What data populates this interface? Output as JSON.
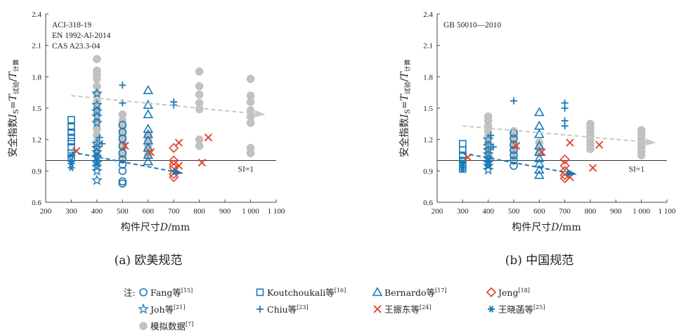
{
  "legend_prefix": "注:",
  "colors": {
    "blue": "#1a7ab5",
    "red": "#e0432c",
    "grey": "#c2c2c2",
    "axis": "#444444"
  },
  "legend": [
    {
      "key": "fang",
      "marker": "circle",
      "color": "#1a7ab5",
      "label": "Fang等",
      "ref": "[15]"
    },
    {
      "key": "koutchoukali",
      "marker": "square",
      "color": "#1a7ab5",
      "label": "Koutchoukali等",
      "ref": "[16]"
    },
    {
      "key": "bernardo",
      "marker": "triangle",
      "color": "#1a7ab5",
      "label": "Bernardo等",
      "ref": "[17]"
    },
    {
      "key": "jeng",
      "marker": "diamond",
      "color": "#e0432c",
      "label": "Jeng",
      "ref": "[18]"
    },
    {
      "key": "joh",
      "marker": "star",
      "color": "#1a7ab5",
      "label": "Joh等",
      "ref": "[21]"
    },
    {
      "key": "chiu",
      "marker": "plus",
      "color": "#1a7ab5",
      "label": "Chiu等",
      "ref": "[23]"
    },
    {
      "key": "wang_zd",
      "marker": "cross",
      "color": "#e0432c",
      "label": "王振东等",
      "ref": "[24]"
    },
    {
      "key": "wang_xh",
      "marker": "asterisk",
      "color": "#1a7ab5",
      "label": "王晓菡等",
      "ref": "[25]"
    },
    {
      "key": "sim",
      "marker": "dot",
      "color": "#c2c2c2",
      "label": "模拟数据",
      "ref": "[7]"
    }
  ],
  "chart_data": [
    {
      "type": "scatter",
      "caption": "(a) 欧美规范",
      "notes": [
        "ACI-318-19",
        "EN 1992-Al-2014",
        "CAS A23.3-04"
      ],
      "xlabel": "构件尺寸D/mm",
      "ylabel": "安全指数I_S=T_试验/T_计算",
      "xlim": [
        200,
        1100
      ],
      "ylim": [
        0.6,
        2.4
      ],
      "xticks": [
        200,
        300,
        400,
        500,
        600,
        700,
        800,
        900,
        1000,
        1100
      ],
      "xtick_labels": [
        "200",
        "300",
        "400",
        "500",
        "600",
        "700",
        "800",
        "900",
        "1 000",
        "1 100"
      ],
      "yticks": [
        0.6,
        0.9,
        1.2,
        1.5,
        1.8,
        2.1,
        2.4
      ],
      "ytick_labels": [
        "0.6",
        "0.9",
        "1.2",
        "1.5",
        "1.8",
        "2.1",
        "2.4"
      ],
      "reference_line": {
        "y": 1.0,
        "label": "SI=1"
      },
      "trend_lines": [
        {
          "color": "blue",
          "x": [
            300,
            730
          ],
          "y": [
            1.08,
            0.88
          ]
        },
        {
          "color": "grey",
          "x": [
            300,
            1050
          ],
          "y": [
            1.62,
            1.44
          ]
        }
      ],
      "series": [
        {
          "key": "sim",
          "points": [
            [
              400,
              1.97
            ],
            [
              400,
              1.86
            ],
            [
              400,
              1.82
            ],
            [
              400,
              1.78
            ],
            [
              400,
              1.71
            ],
            [
              400,
              1.64
            ],
            [
              400,
              1.56
            ],
            [
              400,
              1.5
            ],
            [
              400,
              1.45
            ],
            [
              400,
              1.37
            ],
            [
              400,
              1.3
            ],
            [
              400,
              1.24
            ],
            [
              400,
              1.18
            ],
            [
              400,
              1.13
            ],
            [
              400,
              1.08
            ],
            [
              500,
              1.44
            ],
            [
              500,
              1.38
            ],
            [
              500,
              1.33
            ],
            [
              500,
              1.28
            ],
            [
              500,
              1.23
            ],
            [
              500,
              1.18
            ],
            [
              500,
              1.13
            ],
            [
              500,
              1.08
            ],
            [
              500,
              1.04
            ],
            [
              600,
              1.24
            ],
            [
              600,
              1.19
            ],
            [
              600,
              1.14
            ],
            [
              600,
              1.1
            ],
            [
              600,
              1.05
            ],
            [
              800,
              1.85
            ],
            [
              800,
              1.71
            ],
            [
              800,
              1.63
            ],
            [
              800,
              1.55
            ],
            [
              800,
              1.49
            ],
            [
              800,
              1.2
            ],
            [
              800,
              1.14
            ],
            [
              1000,
              1.78
            ],
            [
              1000,
              1.62
            ],
            [
              1000,
              1.56
            ],
            [
              1000,
              1.48
            ],
            [
              1000,
              1.42
            ],
            [
              1000,
              1.36
            ],
            [
              1000,
              1.12
            ],
            [
              1000,
              1.07
            ]
          ]
        },
        {
          "key": "koutchoukali",
          "points": [
            [
              300,
              1.39
            ],
            [
              300,
              1.32
            ],
            [
              300,
              1.27
            ],
            [
              300,
              1.22
            ],
            [
              300,
              1.18
            ],
            [
              300,
              1.13
            ],
            [
              300,
              1.07
            ],
            [
              300,
              1.02
            ]
          ]
        },
        {
          "key": "wang_xh",
          "points": [
            [
              300,
              1.05
            ],
            [
              300,
              1.0
            ],
            [
              300,
              0.97
            ],
            [
              300,
              0.93
            ],
            [
              400,
              1.05
            ],
            [
              400,
              1.0
            ],
            [
              400,
              0.97
            ]
          ]
        },
        {
          "key": "joh",
          "points": [
            [
              400,
              1.64
            ],
            [
              400,
              1.53
            ],
            [
              400,
              1.47
            ],
            [
              400,
              1.42
            ],
            [
              400,
              1.36
            ],
            [
              400,
              1.16
            ],
            [
              400,
              1.12
            ],
            [
              400,
              1.08
            ],
            [
              400,
              1.03
            ],
            [
              400,
              0.98
            ],
            [
              400,
              0.94
            ],
            [
              400,
              0.9
            ],
            [
              400,
              0.81
            ]
          ]
        },
        {
          "key": "chiu",
          "points": [
            [
              410,
              1.22
            ],
            [
              420,
              1.16
            ],
            [
              500,
              1.72
            ],
            [
              500,
              1.55
            ],
            [
              700,
              1.56
            ],
            [
              700,
              1.53
            ]
          ]
        },
        {
          "key": "fang",
          "points": [
            [
              500,
              1.34
            ],
            [
              500,
              1.27
            ],
            [
              500,
              1.21
            ],
            [
              500,
              1.14
            ],
            [
              500,
              1.07
            ],
            [
              500,
              1.01
            ],
            [
              500,
              0.96
            ],
            [
              500,
              0.9
            ],
            [
              500,
              0.8
            ],
            [
              500,
              0.78
            ]
          ]
        },
        {
          "key": "bernardo",
          "points": [
            [
              600,
              1.67
            ],
            [
              600,
              1.53
            ],
            [
              600,
              1.44
            ],
            [
              600,
              1.3
            ],
            [
              600,
              1.25
            ],
            [
              600,
              1.19
            ],
            [
              600,
              1.12
            ],
            [
              600,
              1.05
            ],
            [
              600,
              0.99
            ]
          ]
        },
        {
          "key": "wang_zd",
          "points": [
            [
              320,
              1.09
            ],
            [
              510,
              1.14
            ],
            [
              610,
              1.08
            ],
            [
              720,
              1.17
            ],
            [
              720,
              0.95
            ],
            [
              810,
              0.98
            ],
            [
              835,
              1.22
            ]
          ]
        },
        {
          "key": "jeng",
          "points": [
            [
              700,
              1.12
            ],
            [
              700,
              1.0
            ],
            [
              700,
              0.96
            ],
            [
              700,
              0.93
            ],
            [
              700,
              0.87
            ],
            [
              700,
              0.84
            ]
          ]
        }
      ]
    },
    {
      "type": "scatter",
      "caption": "(b) 中国规范",
      "notes": [
        "GB 50010—2010"
      ],
      "xlabel": "构件尺寸D/mm",
      "ylabel": "安全指数I_S=T_试验/T_计算",
      "xlim": [
        200,
        1100
      ],
      "ylim": [
        0.6,
        2.4
      ],
      "xticks": [
        200,
        300,
        400,
        500,
        600,
        700,
        800,
        900,
        1000,
        1100
      ],
      "xtick_labels": [
        "200",
        "300",
        "400",
        "500",
        "600",
        "700",
        "800",
        "900",
        "1 000",
        "1 100"
      ],
      "yticks": [
        0.6,
        0.9,
        1.2,
        1.5,
        1.8,
        2.1,
        2.4
      ],
      "ytick_labels": [
        "0.6",
        "0.9",
        "1.2",
        "1.5",
        "1.8",
        "2.1",
        "2.4"
      ],
      "reference_line": {
        "y": 1.0,
        "label": "SI=1"
      },
      "trend_lines": [
        {
          "color": "blue",
          "x": [
            300,
            740
          ],
          "y": [
            1.07,
            0.87
          ]
        },
        {
          "color": "grey",
          "x": [
            300,
            1050
          ],
          "y": [
            1.33,
            1.17
          ]
        }
      ],
      "series": [
        {
          "key": "sim",
          "points": [
            [
              400,
              1.42
            ],
            [
              400,
              1.38
            ],
            [
              400,
              1.33
            ],
            [
              400,
              1.28
            ],
            [
              400,
              1.23
            ],
            [
              400,
              1.17
            ],
            [
              400,
              1.11
            ],
            [
              400,
              1.05
            ],
            [
              500,
              1.28
            ],
            [
              500,
              1.24
            ],
            [
              500,
              1.19
            ],
            [
              500,
              1.14
            ],
            [
              500,
              1.09
            ],
            [
              500,
              1.04
            ],
            [
              600,
              1.17
            ],
            [
              600,
              1.12
            ],
            [
              600,
              1.07
            ],
            [
              800,
              1.35
            ],
            [
              800,
              1.31
            ],
            [
              800,
              1.27
            ],
            [
              800,
              1.23
            ],
            [
              800,
              1.19
            ],
            [
              800,
              1.15
            ],
            [
              800,
              1.11
            ],
            [
              1000,
              1.29
            ],
            [
              1000,
              1.25
            ],
            [
              1000,
              1.21
            ],
            [
              1000,
              1.17
            ],
            [
              1000,
              1.13
            ],
            [
              1000,
              1.09
            ],
            [
              1000,
              1.05
            ]
          ]
        },
        {
          "key": "koutchoukali",
          "points": [
            [
              300,
              1.16
            ],
            [
              300,
              1.1
            ],
            [
              300,
              1.05
            ],
            [
              300,
              1.0
            ],
            [
              300,
              0.96
            ],
            [
              300,
              0.92
            ]
          ]
        },
        {
          "key": "wang_xh",
          "points": [
            [
              300,
              0.98
            ],
            [
              300,
              0.95
            ],
            [
              300,
              0.91
            ],
            [
              400,
              1.0
            ],
            [
              400,
              0.96
            ]
          ]
        },
        {
          "key": "joh",
          "points": [
            [
              400,
              1.2
            ],
            [
              400,
              1.14
            ],
            [
              400,
              1.1
            ],
            [
              400,
              1.06
            ],
            [
              400,
              1.02
            ],
            [
              400,
              0.98
            ],
            [
              400,
              0.95
            ],
            [
              400,
              0.91
            ]
          ]
        },
        {
          "key": "chiu",
          "points": [
            [
              410,
              1.24
            ],
            [
              420,
              1.13
            ],
            [
              500,
              1.57
            ],
            [
              700,
              1.55
            ],
            [
              700,
              1.5
            ],
            [
              700,
              1.38
            ],
            [
              700,
              1.33
            ]
          ]
        },
        {
          "key": "fang",
          "points": [
            [
              500,
              1.26
            ],
            [
              500,
              1.21
            ],
            [
              500,
              1.15
            ],
            [
              500,
              1.1
            ],
            [
              500,
              1.05
            ],
            [
              500,
              1.0
            ],
            [
              500,
              0.95
            ]
          ]
        },
        {
          "key": "bernardo",
          "points": [
            [
              600,
              1.46
            ],
            [
              600,
              1.33
            ],
            [
              600,
              1.25
            ],
            [
              600,
              1.14
            ],
            [
              600,
              1.08
            ],
            [
              600,
              1.02
            ],
            [
              600,
              0.97
            ],
            [
              600,
              0.91
            ],
            [
              600,
              0.86
            ]
          ]
        },
        {
          "key": "wang_zd",
          "points": [
            [
              320,
              1.03
            ],
            [
              510,
              1.14
            ],
            [
              610,
              1.08
            ],
            [
              720,
              1.17
            ],
            [
              720,
              0.84
            ],
            [
              810,
              0.93
            ],
            [
              835,
              1.15
            ]
          ]
        },
        {
          "key": "jeng",
          "points": [
            [
              700,
              1.01
            ],
            [
              700,
              0.95
            ],
            [
              700,
              0.9
            ],
            [
              700,
              0.86
            ],
            [
              700,
              0.83
            ]
          ]
        }
      ]
    }
  ]
}
